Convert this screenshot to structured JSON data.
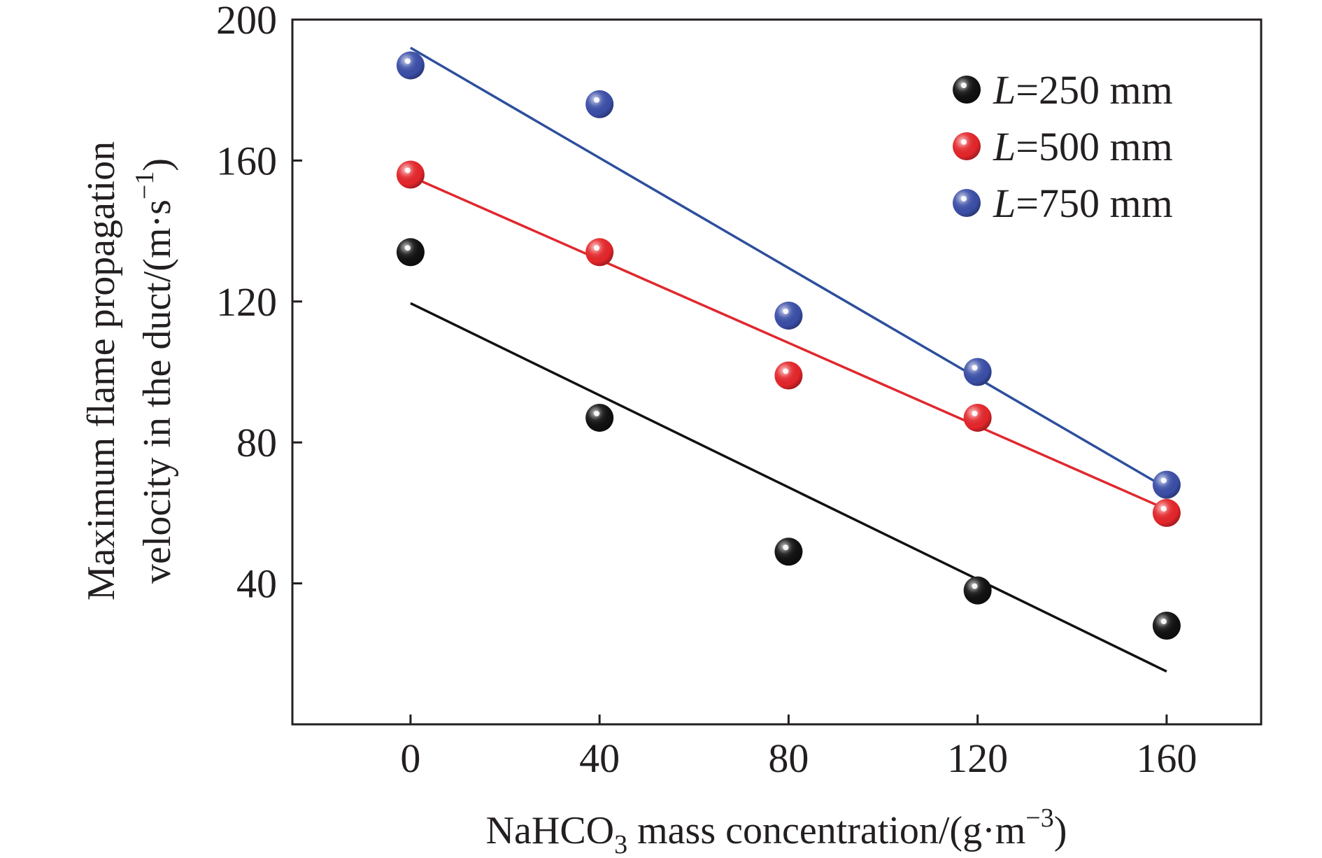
{
  "chart_data": {
    "type": "scatter",
    "xlabel": {
      "pre": "NaHCO",
      "sub": "3",
      "mid": " mass concentration/(g·m",
      "sup": "−3",
      "post": ")"
    },
    "ylabel": {
      "line1": "Maximum flame propagation",
      "line2_pre": "velocity in the duct/(m·s",
      "line2_sup": "−1",
      "line2_post": ")"
    },
    "xlim": [
      -25,
      180
    ],
    "ylim": [
      0,
      200
    ],
    "xticks": [
      "0",
      "40",
      "80",
      "120",
      "160"
    ],
    "yticks": [
      "40",
      "80",
      "120",
      "160",
      "200"
    ],
    "x": [
      0,
      40,
      80,
      120,
      160
    ],
    "legend_position": "top-right",
    "grid": false,
    "series": [
      {
        "name_var": "L",
        "name_rest": "=250 mm",
        "color": "#111111",
        "fit_color": "#111111",
        "values": [
          134,
          87,
          49,
          38,
          28
        ],
        "fit": [
          [
            0,
            119.5
          ],
          [
            160,
            15
          ]
        ]
      },
      {
        "name_var": "L",
        "name_rest": "=500 mm",
        "color": "#e5262b",
        "fit_color": "#e0282e",
        "values": [
          156,
          134,
          99,
          87,
          60
        ],
        "fit": [
          [
            0,
            155.5
          ],
          [
            160,
            61
          ]
        ]
      },
      {
        "name_var": "L",
        "name_rest": "=750 mm",
        "color": "#3b4fa8",
        "fit_color": "#2d4f9c",
        "values": [
          187,
          176,
          116,
          100,
          68
        ],
        "fit": [
          [
            0,
            192
          ],
          [
            160,
            67
          ]
        ]
      }
    ]
  }
}
